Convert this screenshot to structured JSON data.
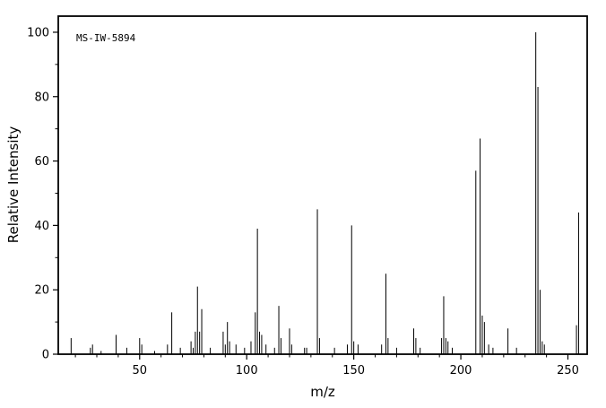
{
  "chart_data": {
    "type": "bar",
    "subtype": "mass-spectrum-stick-plot",
    "title": "",
    "annotation": "MS-IW-5894",
    "xlabel": "m/z",
    "ylabel": "Relative Intensity",
    "xlim": [
      12,
      259
    ],
    "ylim": [
      0,
      105
    ],
    "x_ticks": [
      50,
      100,
      150,
      200,
      250
    ],
    "y_ticks": [
      0,
      20,
      40,
      60,
      80,
      100
    ],
    "x_minor_step": 10,
    "y_minor_step": 10,
    "grid": false,
    "legend": "none",
    "line_color": "#000000",
    "frame_color": "#000000",
    "background": "#ffffff",
    "peaks": [
      [
        18,
        5
      ],
      [
        27,
        2
      ],
      [
        28,
        3
      ],
      [
        32,
        1
      ],
      [
        39,
        6
      ],
      [
        44,
        2
      ],
      [
        50,
        5
      ],
      [
        51,
        3
      ],
      [
        57,
        1
      ],
      [
        63,
        3
      ],
      [
        65,
        13
      ],
      [
        69,
        2
      ],
      [
        74,
        4
      ],
      [
        75,
        2
      ],
      [
        76,
        7
      ],
      [
        77,
        21
      ],
      [
        78,
        7
      ],
      [
        79,
        14
      ],
      [
        83,
        2
      ],
      [
        89,
        7
      ],
      [
        90,
        3
      ],
      [
        91,
        10
      ],
      [
        92,
        4
      ],
      [
        95,
        3
      ],
      [
        99,
        2
      ],
      [
        102,
        4
      ],
      [
        104,
        13
      ],
      [
        105,
        39
      ],
      [
        106,
        7
      ],
      [
        107,
        6
      ],
      [
        109,
        3
      ],
      [
        113,
        2
      ],
      [
        115,
        15
      ],
      [
        116,
        5
      ],
      [
        120,
        8
      ],
      [
        121,
        3
      ],
      [
        127,
        2
      ],
      [
        128,
        2
      ],
      [
        133,
        45
      ],
      [
        134,
        5
      ],
      [
        141,
        2
      ],
      [
        147,
        3
      ],
      [
        149,
        40
      ],
      [
        150,
        4
      ],
      [
        152,
        3
      ],
      [
        163,
        3
      ],
      [
        165,
        25
      ],
      [
        166,
        5
      ],
      [
        170,
        2
      ],
      [
        178,
        8
      ],
      [
        179,
        5
      ],
      [
        181,
        2
      ],
      [
        191,
        5
      ],
      [
        192,
        18
      ],
      [
        193,
        5
      ],
      [
        194,
        4
      ],
      [
        196,
        2
      ],
      [
        207,
        57
      ],
      [
        209,
        67
      ],
      [
        210,
        12
      ],
      [
        211,
        10
      ],
      [
        213,
        3
      ],
      [
        215,
        2
      ],
      [
        222,
        8
      ],
      [
        226,
        2
      ],
      [
        235,
        100
      ],
      [
        236,
        83
      ],
      [
        237,
        20
      ],
      [
        238,
        4
      ],
      [
        239,
        3
      ],
      [
        254,
        9
      ],
      [
        255,
        44
      ]
    ]
  }
}
